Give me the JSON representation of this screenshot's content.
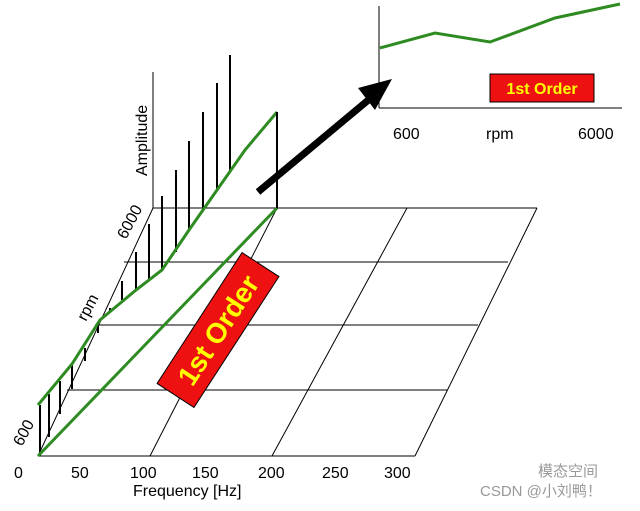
{
  "waterfall": {
    "x_axis": {
      "title": "Frequency [Hz]",
      "ticks": [
        "0",
        "50",
        "100",
        "150",
        "200",
        "250",
        "300"
      ]
    },
    "y_axis": {
      "title": "rpm",
      "ticks": [
        "600",
        "6000"
      ]
    },
    "z_axis": {
      "title": "Amplitude"
    },
    "order_badge": "1st Order"
  },
  "inset": {
    "x_axis_title": "rpm",
    "x_ticks": [
      "600",
      "6000"
    ],
    "order_badge": "1st Order"
  },
  "watermark": {
    "line1": "模态空间",
    "line2": "CSDN @小刘鸭！"
  },
  "colors": {
    "trace": "#2e8b22",
    "badge_bg": "#ee1111",
    "badge_text": "#ffff00",
    "arrow": "#000000"
  }
}
